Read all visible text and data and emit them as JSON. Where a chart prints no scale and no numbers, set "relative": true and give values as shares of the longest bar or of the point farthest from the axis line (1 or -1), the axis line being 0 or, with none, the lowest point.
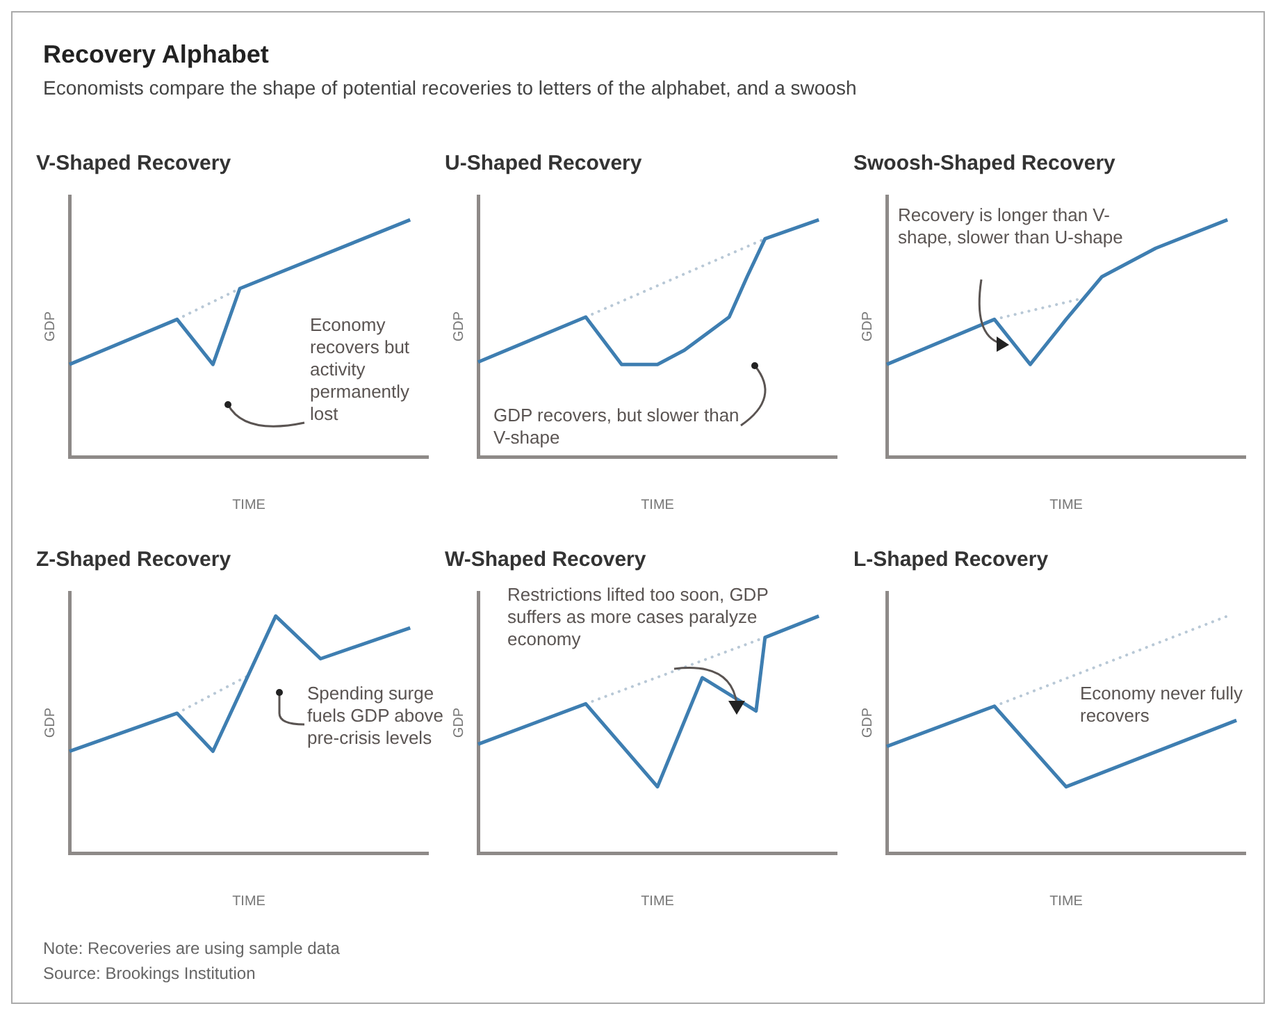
{
  "chart_data": [
    {
      "type": "other",
      "title": "Recovery Alphabet",
      "subtitle": "Economists compare the shape of potential recoveries to letters of the alphabet, and a swoosh",
      "annotations": [
        "Note: Recoveries are using sample data",
        "Source: Brookings Institution"
      ]
    },
    {
      "type": "line",
      "title": "V-Shaped Recovery",
      "xlabel": "TIME",
      "ylabel": "GDP",
      "relative": true,
      "annotations": [
        "Economy recovers but activity permanently lost"
      ],
      "categories": [
        null,
        null,
        null,
        null,
        null,
        null,
        null,
        null,
        null,
        null,
        null,
        null,
        null,
        null,
        null,
        null,
        null,
        null,
        null,
        null,
        null,
        null,
        null,
        null,
        null,
        null,
        null,
        null,
        null,
        null,
        null,
        null,
        null,
        null,
        null,
        null,
        null,
        null,
        null,
        null,
        null
      ],
      "series": [
        {
          "color": "#3e7eb1",
          "values": [
            0.39,
            null,
            null,
            null,
            null,
            null,
            null,
            null,
            null,
            null,
            null,
            null,
            0.58,
            null,
            null,
            null,
            0.39,
            null,
            null,
            0.71,
            null,
            null,
            null,
            null,
            null,
            null,
            null,
            null,
            null,
            null,
            null,
            null,
            null,
            null,
            null,
            null,
            null,
            null,
            1,
            null,
            null
          ]
        },
        {
          "color": "#b8c8d6",
          "line_style": "dotted",
          "values": [
            null,
            null,
            null,
            null,
            null,
            null,
            null,
            null,
            null,
            null,
            null,
            null,
            0.58,
            null,
            null,
            null,
            null,
            null,
            null,
            0.71,
            null,
            null,
            null,
            null,
            null,
            null,
            null,
            null,
            null,
            null,
            null,
            null,
            null,
            null,
            null,
            null,
            null,
            null,
            null,
            null,
            null
          ]
        }
      ]
    },
    {
      "type": "line",
      "title": "U-Shaped Recovery",
      "xlabel": "TIME",
      "ylabel": "GDP",
      "relative": true,
      "annotations": [
        "GDP recovers, but slower than V-shape"
      ],
      "categories": [
        null,
        null,
        null,
        null,
        null,
        null,
        null,
        null,
        null,
        null,
        null,
        null,
        null,
        null,
        null,
        null,
        null,
        null,
        null,
        null,
        null,
        null,
        null,
        null,
        null,
        null,
        null,
        null,
        null,
        null,
        null,
        null,
        null,
        null,
        null,
        null,
        null,
        null,
        null,
        null,
        null
      ],
      "series": [
        {
          "color": "#3e7eb1",
          "values": [
            0.4,
            null,
            null,
            null,
            null,
            null,
            null,
            null,
            null,
            null,
            null,
            null,
            0.59,
            null,
            null,
            null,
            0.39,
            null,
            null,
            null,
            0.39,
            null,
            null,
            0.45,
            null,
            null,
            null,
            null,
            0.59,
            null,
            0.76,
            null,
            0.92,
            null,
            null,
            null,
            null,
            null,
            1,
            null,
            null
          ]
        },
        {
          "color": "#b8c8d6",
          "line_style": "dotted",
          "values": [
            null,
            null,
            null,
            null,
            null,
            null,
            null,
            null,
            null,
            null,
            null,
            null,
            0.59,
            null,
            null,
            null,
            null,
            null,
            null,
            null,
            null,
            null,
            null,
            null,
            null,
            null,
            null,
            null,
            null,
            null,
            null,
            null,
            0.92,
            null,
            null,
            null,
            null,
            null,
            null,
            null,
            null
          ]
        }
      ]
    },
    {
      "type": "line",
      "title": "Swoosh-Shaped Recovery",
      "xlabel": "TIME",
      "ylabel": "GDP",
      "relative": true,
      "annotations": [
        "Recovery is longer than V-shape, slower than U-shape"
      ],
      "categories": [
        null,
        null,
        null,
        null,
        null,
        null,
        null,
        null,
        null,
        null,
        null,
        null,
        null,
        null,
        null,
        null,
        null,
        null,
        null,
        null,
        null,
        null,
        null,
        null,
        null,
        null,
        null,
        null,
        null,
        null,
        null,
        null,
        null,
        null,
        null,
        null,
        null,
        null,
        null,
        null,
        null
      ],
      "series": [
        {
          "color": "#3e7eb1",
          "values": [
            0.39,
            null,
            null,
            null,
            null,
            null,
            null,
            null,
            null,
            null,
            null,
            null,
            0.58,
            null,
            null,
            null,
            0.39,
            null,
            null,
            null,
            0.58,
            null,
            null,
            null,
            0.76,
            null,
            null,
            null,
            null,
            null,
            0.88,
            null,
            null,
            null,
            null,
            null,
            null,
            null,
            1,
            null,
            null
          ]
        },
        {
          "color": "#b8c8d6",
          "line_style": "dotted",
          "values": [
            null,
            null,
            null,
            null,
            null,
            null,
            null,
            null,
            null,
            null,
            null,
            null,
            0.58,
            null,
            null,
            null,
            null,
            null,
            null,
            null,
            null,
            null,
            0.67,
            null,
            null,
            null,
            null,
            null,
            null,
            null,
            null,
            null,
            null,
            null,
            null,
            null,
            null,
            null,
            null,
            null,
            null
          ]
        }
      ]
    },
    {
      "type": "line",
      "title": "Z-Shaped Recovery",
      "xlabel": "TIME",
      "ylabel": "GDP",
      "relative": true,
      "annotations": [
        "Spending surge fuels GDP above pre-crisis levels"
      ],
      "categories": [
        null,
        null,
        null,
        null,
        null,
        null,
        null,
        null,
        null,
        null,
        null,
        null,
        null,
        null,
        null,
        null,
        null,
        null,
        null,
        null,
        null,
        null,
        null,
        null,
        null,
        null,
        null,
        null,
        null,
        null,
        null,
        null,
        null,
        null,
        null,
        null,
        null,
        null,
        null,
        null,
        null
      ],
      "series": [
        {
          "color": "#3e7eb1",
          "values": [
            0.43,
            null,
            null,
            null,
            null,
            null,
            null,
            null,
            null,
            null,
            null,
            null,
            0.59,
            null,
            null,
            null,
            0.43,
            null,
            null,
            null,
            null,
            null,
            null,
            1,
            null,
            null,
            null,
            null,
            0.82,
            null,
            null,
            null,
            null,
            null,
            null,
            null,
            null,
            null,
            0.95,
            null,
            null
          ]
        },
        {
          "color": "#b8c8d6",
          "line_style": "dotted",
          "values": [
            null,
            null,
            null,
            null,
            null,
            null,
            null,
            null,
            null,
            null,
            null,
            null,
            0.59,
            null,
            null,
            null,
            null,
            null,
            null,
            null,
            0.75,
            null,
            null,
            null,
            null,
            null,
            null,
            null,
            null,
            null,
            null,
            null,
            null,
            null,
            null,
            null,
            null,
            null,
            null,
            null,
            null
          ]
        }
      ]
    },
    {
      "type": "line",
      "title": "W-Shaped Recovery",
      "xlabel": "TIME",
      "ylabel": "GDP",
      "relative": true,
      "annotations": [
        "Restrictions lifted too soon, GDP suffers as more cases paralyze economy"
      ],
      "categories": [
        null,
        null,
        null,
        null,
        null,
        null,
        null,
        null,
        null,
        null,
        null,
        null,
        null,
        null,
        null,
        null,
        null,
        null,
        null,
        null,
        null,
        null,
        null,
        null,
        null,
        null,
        null,
        null,
        null,
        null,
        null,
        null,
        null,
        null,
        null,
        null,
        null,
        null,
        null,
        null,
        null
      ],
      "series": [
        {
          "color": "#3e7eb1",
          "values": [
            0.46,
            null,
            null,
            null,
            null,
            null,
            null,
            null,
            null,
            null,
            null,
            null,
            0.63,
            null,
            null,
            null,
            null,
            null,
            null,
            null,
            0.28,
            null,
            null,
            null,
            null,
            0.74,
            null,
            null,
            null,
            null,
            null,
            0.6,
            0.91,
            null,
            null,
            null,
            null,
            null,
            1,
            null,
            null
          ]
        },
        {
          "color": "#b8c8d6",
          "line_style": "dotted",
          "values": [
            null,
            null,
            null,
            null,
            null,
            null,
            null,
            null,
            null,
            null,
            null,
            null,
            0.63,
            null,
            null,
            null,
            null,
            null,
            null,
            null,
            null,
            null,
            null,
            null,
            null,
            null,
            null,
            null,
            null,
            null,
            null,
            null,
            0.91,
            null,
            null,
            null,
            null,
            null,
            null,
            null,
            null
          ]
        }
      ]
    },
    {
      "type": "line",
      "title": "L-Shaped Recovery",
      "xlabel": "TIME",
      "ylabel": "GDP",
      "relative": true,
      "annotations": [
        "Economy never fully recovers"
      ],
      "categories": [
        null,
        null,
        null,
        null,
        null,
        null,
        null,
        null,
        null,
        null,
        null,
        null,
        null,
        null,
        null,
        null,
        null,
        null,
        null,
        null,
        null,
        null,
        null,
        null,
        null,
        null,
        null,
        null,
        null,
        null,
        null,
        null,
        null,
        null,
        null,
        null,
        null,
        null,
        null,
        null,
        null
      ],
      "series": [
        {
          "color": "#3e7eb1",
          "values": [
            0.45,
            null,
            null,
            null,
            null,
            null,
            null,
            null,
            null,
            null,
            null,
            null,
            0.62,
            null,
            null,
            null,
            null,
            null,
            null,
            null,
            0.28,
            null,
            null,
            null,
            null,
            null,
            null,
            null,
            null,
            null,
            null,
            null,
            null,
            null,
            null,
            null,
            null,
            null,
            null,
            0.56,
            null
          ]
        },
        {
          "color": "#b8c8d6",
          "line_style": "dotted",
          "values": [
            null,
            null,
            null,
            null,
            null,
            null,
            null,
            null,
            null,
            null,
            null,
            null,
            0.62,
            null,
            null,
            null,
            null,
            null,
            null,
            null,
            null,
            null,
            null,
            null,
            null,
            null,
            null,
            null,
            null,
            null,
            null,
            null,
            null,
            null,
            null,
            null,
            null,
            null,
            1,
            null,
            null
          ]
        }
      ]
    }
  ]
}
